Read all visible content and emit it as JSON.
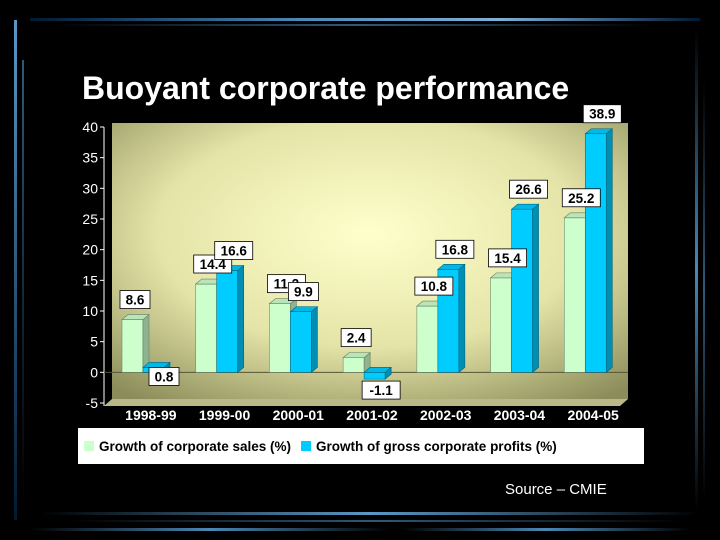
{
  "title": "Buoyant corporate performance",
  "source": "Source – CMIE",
  "colors": {
    "background": "#000000",
    "plot_light": "#ffffcc",
    "plot_dark": "#8c8c5a",
    "series_sales": "#ccffcc",
    "series_profits": "#00ccff"
  },
  "chart_data": {
    "type": "bar",
    "title": "Buoyant corporate performance",
    "categories": [
      "1998-99",
      "1999-00",
      "2000-01",
      "2001-02",
      "2002-03",
      "2003-04",
      "2004-05"
    ],
    "series": [
      {
        "name": "Growth of corporate sales (%)",
        "values": [
          8.6,
          14.4,
          11.2,
          2.4,
          10.8,
          15.4,
          25.2
        ]
      },
      {
        "name": "Growth of gross corporate profits (%)",
        "values": [
          0.8,
          16.6,
          9.9,
          -1.1,
          16.8,
          26.6,
          38.9
        ]
      }
    ],
    "ylim": [
      -5,
      40
    ],
    "yticks": [
      "-5",
      "0",
      "5",
      "10",
      "15",
      "20",
      "25",
      "30",
      "35",
      "40"
    ],
    "data_labels": true,
    "legend_position": "bottom",
    "grid": false
  }
}
